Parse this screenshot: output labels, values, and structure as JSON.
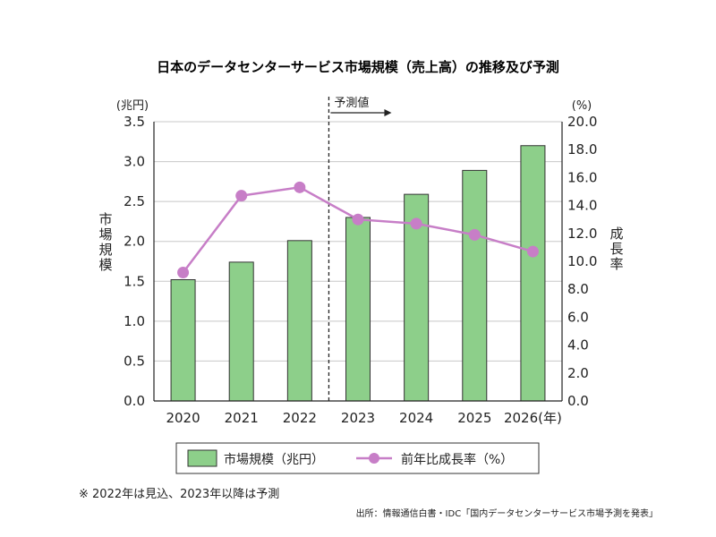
{
  "chart_data": {
    "type": "bar",
    "title": "日本のデータセンターサービス市場規模（売上高）の推移及び予測",
    "categories": [
      "2020",
      "2021",
      "2022",
      "2023",
      "2024",
      "2025",
      "2026"
    ],
    "x_last_suffix": "(年)",
    "series": [
      {
        "name": "市場規模（兆円）",
        "type": "bar",
        "axis": "left",
        "color": "#8dcf8a",
        "values": [
          1.52,
          1.74,
          2.01,
          2.3,
          2.59,
          2.89,
          3.2
        ]
      },
      {
        "name": "前年比成長率（%）",
        "type": "line",
        "axis": "right",
        "color": "#c77ec7",
        "values": [
          9.2,
          14.7,
          15.3,
          13.0,
          12.7,
          11.9,
          10.7
        ]
      }
    ],
    "y_left": {
      "unit_label": "(兆円)",
      "label": "市場規模",
      "min": 0,
      "max": 3.5,
      "step": 0.5,
      "ticks": [
        "0.0",
        "0.5",
        "1.0",
        "1.5",
        "2.0",
        "2.5",
        "3.0",
        "3.5"
      ]
    },
    "y_right": {
      "unit_label": "(%)",
      "label": "成長率",
      "min": 0,
      "max": 20,
      "step": 2,
      "ticks": [
        "0.0",
        "2.0",
        "4.0",
        "6.0",
        "8.0",
        "10.0",
        "12.0",
        "14.0",
        "16.0",
        "18.0",
        "20.0"
      ]
    },
    "forecast": {
      "label": "予測値",
      "starts_at": "2023"
    },
    "grid": true,
    "legend_position": "bottom",
    "note": "※ 2022年は見込、2023年以降は予測",
    "source": "出所：情報通信白書・IDC「国内データセンターサービス市場予測を発表」"
  }
}
